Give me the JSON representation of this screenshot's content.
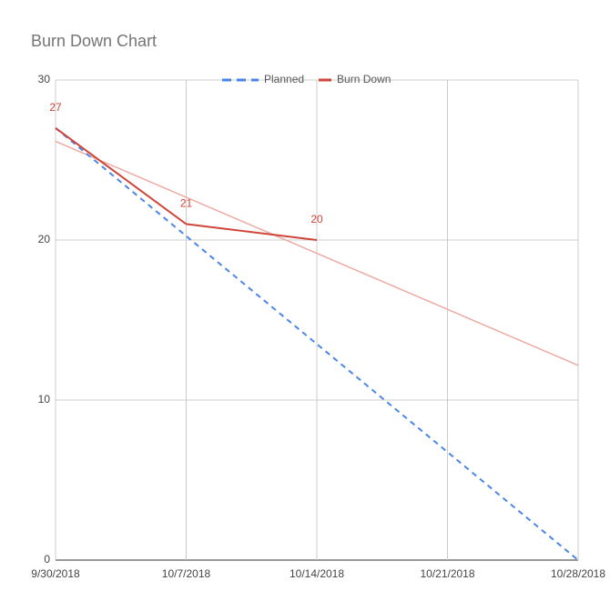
{
  "chart_data": {
    "type": "line",
    "title": "Burn Down Chart",
    "series": [
      {
        "name": "Planned",
        "color": "#4a86e8",
        "dashed": true,
        "x": [
          "9/30/2018",
          "10/28/2018"
        ],
        "values": [
          27,
          0
        ]
      },
      {
        "name": "Burn Down",
        "color": "#d0453a",
        "x": [
          "9/30/2018",
          "10/7/2018",
          "10/14/2018"
        ],
        "values": [
          27,
          21,
          20
        ],
        "data_labels": true
      }
    ],
    "trendline": {
      "color": "#eeaaa3",
      "x": [
        "9/30/2018",
        "10/28/2018"
      ],
      "values": [
        26.17,
        12.17
      ]
    },
    "xlim": [
      "9/30/2018",
      "10/28/2018"
    ],
    "xticks": [
      "9/30/2018",
      "10/7/2018",
      "10/14/2018",
      "10/21/2018",
      "10/28/2018"
    ],
    "ylim": [
      0,
      30
    ],
    "yticks": [
      0,
      10,
      20,
      30
    ],
    "grid": true,
    "legend": "top"
  }
}
